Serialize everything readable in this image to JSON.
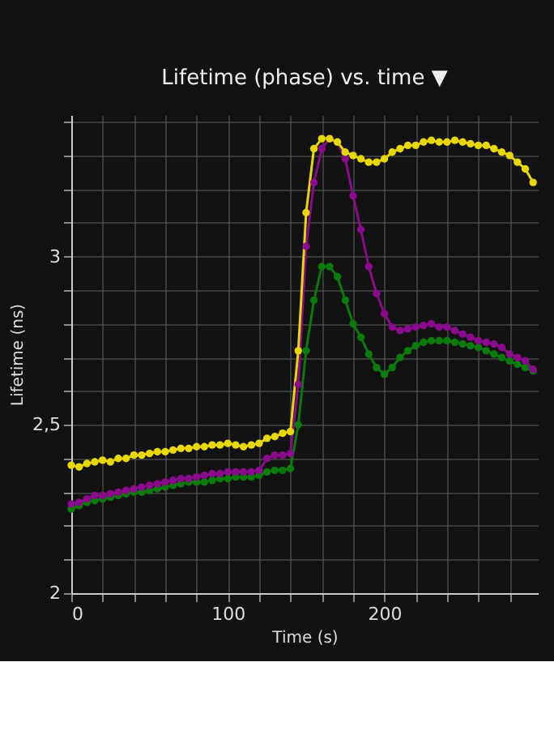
{
  "chart_data": {
    "type": "line",
    "title": "Lifetime (phase) vs. time ▼",
    "xlabel": "Time (s)",
    "ylabel": "Lifetime (ns)",
    "x": [
      0,
      5,
      10,
      15,
      20,
      25,
      30,
      35,
      40,
      45,
      50,
      55,
      60,
      65,
      70,
      75,
      80,
      85,
      90,
      95,
      100,
      105,
      110,
      115,
      120,
      125,
      130,
      135,
      140,
      145,
      150,
      155,
      160,
      165,
      170,
      175,
      180,
      185,
      190,
      195,
      200,
      205,
      210,
      215,
      220,
      225,
      230,
      235,
      240,
      245,
      250,
      255,
      260,
      265,
      270,
      275,
      280,
      285,
      290,
      295
    ],
    "series": [
      {
        "color": "#0a7a0a",
        "values": [
          2.25,
          2.26,
          2.27,
          2.275,
          2.28,
          2.285,
          2.29,
          2.295,
          2.3,
          2.3,
          2.305,
          2.31,
          2.315,
          2.32,
          2.325,
          2.33,
          2.33,
          2.33,
          2.335,
          2.34,
          2.34,
          2.345,
          2.345,
          2.345,
          2.35,
          2.36,
          2.365,
          2.365,
          2.37,
          2.5,
          2.72,
          2.87,
          2.97,
          2.97,
          2.94,
          2.87,
          2.8,
          2.76,
          2.71,
          2.67,
          2.65,
          2.67,
          2.7,
          2.72,
          2.735,
          2.745,
          2.75,
          2.75,
          2.75,
          2.745,
          2.74,
          2.735,
          2.73,
          2.72,
          2.71,
          2.7,
          2.69,
          2.68,
          2.67,
          2.66
        ]
      },
      {
        "color": "#8b0a8b",
        "values": [
          2.265,
          2.27,
          2.28,
          2.29,
          2.29,
          2.295,
          2.3,
          2.305,
          2.31,
          2.315,
          2.32,
          2.325,
          2.33,
          2.335,
          2.34,
          2.34,
          2.345,
          2.35,
          2.355,
          2.355,
          2.36,
          2.36,
          2.36,
          2.36,
          2.365,
          2.4,
          2.41,
          2.41,
          2.415,
          2.62,
          3.03,
          3.22,
          3.32,
          3.35,
          3.34,
          3.29,
          3.18,
          3.08,
          2.97,
          2.89,
          2.83,
          2.79,
          2.78,
          2.785,
          2.79,
          2.795,
          2.8,
          2.79,
          2.79,
          2.78,
          2.77,
          2.76,
          2.75,
          2.745,
          2.74,
          2.73,
          2.71,
          2.7,
          2.69,
          2.665
        ]
      },
      {
        "color": "#e6d800",
        "values": [
          2.38,
          2.375,
          2.385,
          2.39,
          2.395,
          2.39,
          2.4,
          2.4,
          2.41,
          2.41,
          2.415,
          2.42,
          2.42,
          2.425,
          2.43,
          2.43,
          2.435,
          2.435,
          2.44,
          2.44,
          2.445,
          2.44,
          2.435,
          2.44,
          2.445,
          2.46,
          2.465,
          2.475,
          2.48,
          2.72,
          3.13,
          3.32,
          3.35,
          3.35,
          3.34,
          3.31,
          3.3,
          3.29,
          3.28,
          3.28,
          3.29,
          3.31,
          3.32,
          3.33,
          3.33,
          3.34,
          3.345,
          3.34,
          3.34,
          3.345,
          3.34,
          3.335,
          3.33,
          3.33,
          3.32,
          3.31,
          3.3,
          3.28,
          3.26,
          3.22
        ]
      }
    ],
    "xlim": [
      0,
      298
    ],
    "ylim": [
      2,
      3.42
    ],
    "xticks": [
      0,
      {
        "value": 20,
        "label": null
      },
      {
        "value": 40,
        "label": null
      },
      {
        "value": 60,
        "label": null
      },
      {
        "value": 80,
        "label": null
      },
      100,
      {
        "value": 120,
        "label": null
      },
      {
        "value": 140,
        "label": null
      },
      {
        "value": 160,
        "label": null
      },
      {
        "value": 180,
        "label": null
      },
      200,
      {
        "value": 220,
        "label": null
      },
      {
        "value": 240,
        "label": null
      },
      {
        "value": 260,
        "label": null
      },
      {
        "value": 280,
        "label": null
      }
    ],
    "yticks": [
      2,
      {
        "value": 2.1,
        "label": null
      },
      {
        "value": 2.2,
        "label": null
      },
      {
        "value": 2.3,
        "label": null
      },
      {
        "value": 2.4,
        "label": null
      },
      {
        "value": 2.5,
        "label": "2,5"
      },
      {
        "value": 2.6,
        "label": null
      },
      {
        "value": 2.7,
        "label": null
      },
      {
        "value": 2.8,
        "label": null
      },
      {
        "value": 2.9,
        "label": null
      },
      3,
      {
        "value": 3.1,
        "label": null
      },
      {
        "value": 3.2,
        "label": null
      },
      {
        "value": 3.3,
        "label": null
      },
      {
        "value": 3.4,
        "label": null
      }
    ],
    "grid": true,
    "legend": false,
    "marker": "circle",
    "line_style": "solid"
  }
}
